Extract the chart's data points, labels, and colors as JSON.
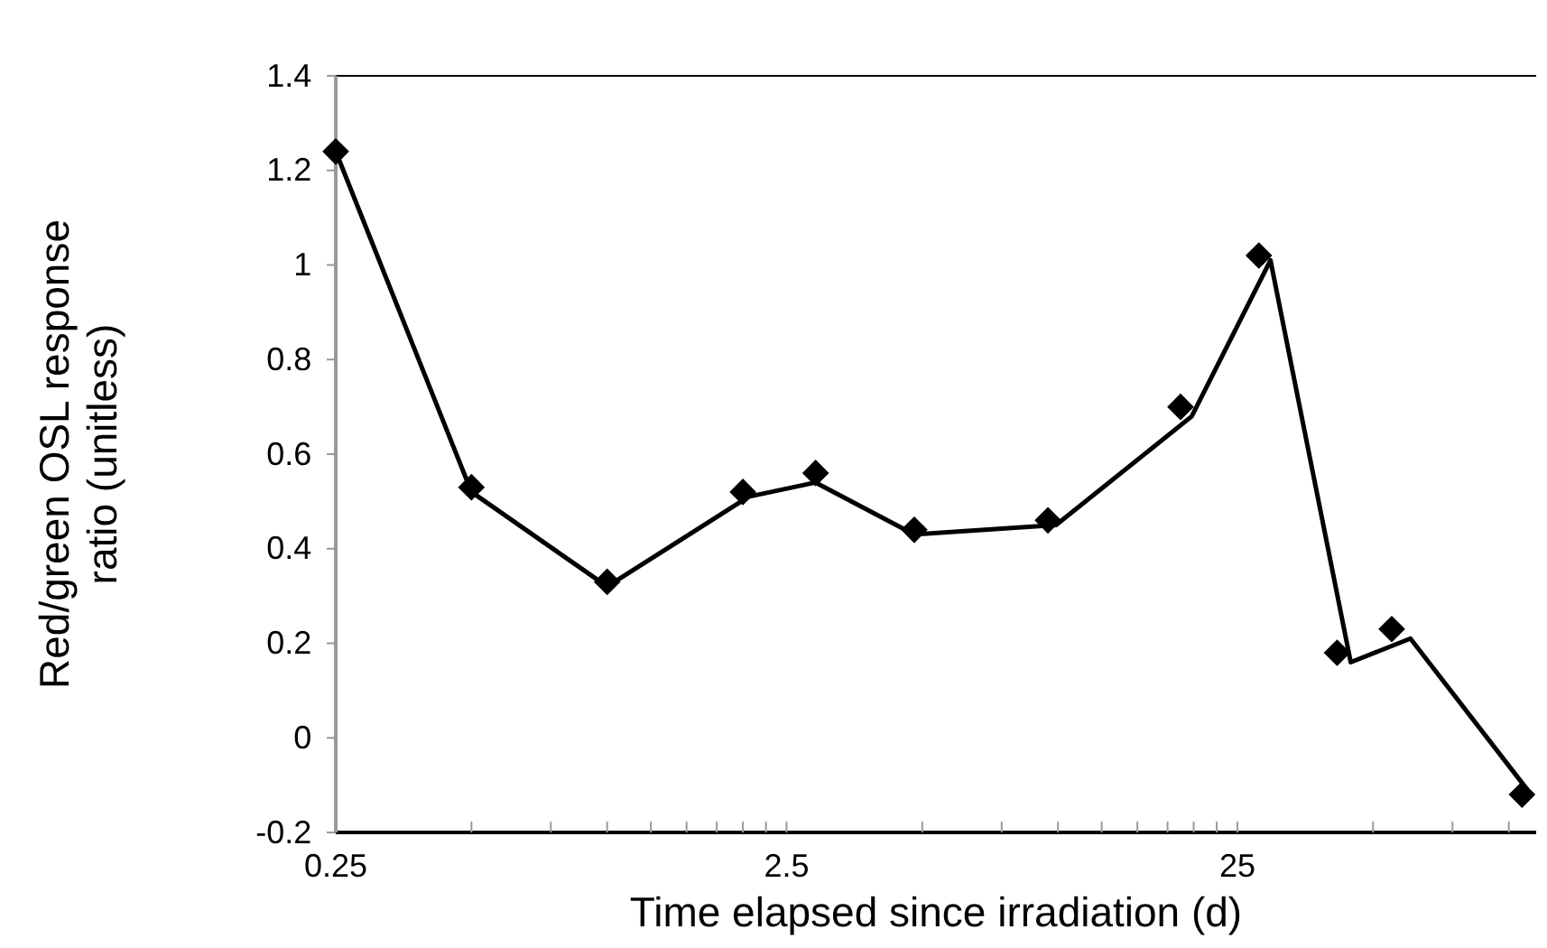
{
  "chart_data": {
    "type": "scatter",
    "xlabel": "Time elapsed since irradiation (d)",
    "ylabel": "Red/green OSL response ratio (unitless)",
    "log": "x",
    "xlim": [
      0.25,
      115
    ],
    "ylim": [
      -0.2,
      1.4
    ],
    "xticks": [
      0.25,
      {
        "value": 0.5,
        "label": null
      },
      {
        "value": 0.75,
        "label": null
      },
      {
        "value": 1,
        "label": null
      },
      {
        "value": 1.25,
        "label": null
      },
      {
        "value": 1.5,
        "label": null
      },
      {
        "value": 1.75,
        "label": null
      },
      {
        "value": 2,
        "label": null
      },
      {
        "value": 2.25,
        "label": null
      },
      2.5,
      {
        "value": 5,
        "label": null
      },
      {
        "value": 7.5,
        "label": null
      },
      {
        "value": 10,
        "label": null
      },
      {
        "value": 12.5,
        "label": null
      },
      {
        "value": 15,
        "label": null
      },
      {
        "value": 17.5,
        "label": null
      },
      {
        "value": 20,
        "label": null
      },
      {
        "value": 22.5,
        "label": null
      },
      25,
      {
        "value": 50,
        "label": null
      },
      {
        "value": 75,
        "label": null
      },
      {
        "value": 100,
        "label": null
      }
    ],
    "yticks": [
      -0.2,
      0,
      0.2,
      0.4,
      0.6,
      0.8,
      1,
      1.2,
      1.4
    ],
    "grid": false,
    "series": [
      {
        "marker": "diamond",
        "color": "#000000",
        "x": [
          0.25,
          0.5,
          1,
          2,
          2.9,
          4.8,
          9.5,
          18.7,
          27.9,
          41.6,
          55,
          107
        ],
        "values": [
          1.24,
          0.53,
          0.33,
          0.52,
          0.56,
          0.44,
          0.46,
          0.7,
          1.02,
          0.18,
          0.23,
          -0.12
        ]
      },
      {
        "type": "line",
        "marker": "none",
        "line_style": "solid",
        "color": "#000000",
        "x": [
          0.25,
          0.5,
          1,
          2.06,
          2.9,
          4.8,
          9.9,
          19.8,
          29.6,
          44.6,
          60.5,
          110
        ],
        "values": [
          1.24,
          0.52,
          0.32,
          0.51,
          0.54,
          0.43,
          0.45,
          0.68,
          1.01,
          0.16,
          0.21,
          -0.11
        ]
      }
    ]
  }
}
